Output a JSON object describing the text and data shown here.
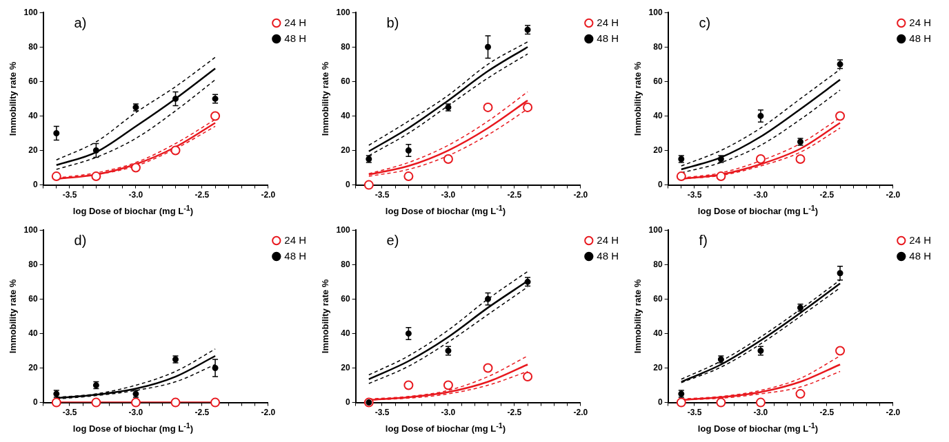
{
  "chart_data": [
    {
      "type": "scatter",
      "annotations": [
        "a)"
      ],
      "xlabel": "log Dose of biochar (mg L$^{-1}$)",
      "ylabel": "Immobility rate %",
      "xlim": [
        -3.7,
        -2.0
      ],
      "xticks": [
        {
          "value": -3.7,
          "label": null
        },
        {
          "value": -3.6,
          "label": null
        },
        {
          "value": -3.5,
          "label": "-3.5"
        },
        {
          "value": -3.4,
          "label": null
        },
        {
          "value": -3.3,
          "label": null
        },
        {
          "value": -3.2,
          "label": null
        },
        {
          "value": -3.1,
          "label": null
        },
        {
          "value": -3.0,
          "label": "-3.0"
        },
        {
          "value": -2.9,
          "label": null
        },
        {
          "value": -2.8,
          "label": null
        },
        {
          "value": -2.7,
          "label": null
        },
        {
          "value": -2.6,
          "label": null
        },
        {
          "value": -2.5,
          "label": "-2.5"
        },
        {
          "value": -2.4,
          "label": null
        },
        {
          "value": -2.3,
          "label": null
        },
        {
          "value": -2.2,
          "label": null
        },
        {
          "value": -2.1,
          "label": null
        },
        {
          "value": -2.0,
          "label": "-2.0"
        }
      ],
      "ylim": [
        0,
        100
      ],
      "yticks": [
        0,
        20,
        40,
        60,
        80,
        100
      ],
      "legend": "top right",
      "series": [
        {
          "name": "24 H",
          "marker": "circle",
          "color": "#e8181e",
          "x": [
            -3.6,
            -3.3,
            -3.0,
            -2.7,
            -2.4
          ],
          "values": [
            5,
            5,
            10,
            20,
            40
          ]
        },
        {
          "name": "48 H",
          "marker": "circle",
          "color": "#000000",
          "x": [
            -3.6,
            -3.3,
            -3.0,
            -2.7,
            -2.4
          ],
          "values": [
            30,
            20,
            45,
            50,
            50
          ],
          "errors": [
            4,
            4,
            2,
            4,
            2.5
          ]
        },
        {
          "type": "line",
          "color": "#e8181e",
          "line_style": "solid",
          "x": [
            -3.6,
            -3.3,
            -3.0,
            -2.7,
            -2.4
          ],
          "values": [
            3.5,
            6,
            12,
            22,
            36
          ]
        },
        {
          "type": "line",
          "color": "#e8181e",
          "line_style": "dashed",
          "x": [
            -3.6,
            -3.3,
            -3.0,
            -2.7,
            -2.4
          ],
          "values": [
            3.5,
            6,
            11,
            21,
            34
          ]
        },
        {
          "type": "line",
          "color": "#e8181e",
          "line_style": "dashed",
          "x": [
            -3.6,
            -3.3,
            -3.0,
            -2.7,
            -2.4
          ],
          "values": [
            4,
            7,
            13,
            24,
            38
          ]
        },
        {
          "type": "line",
          "color": "#000000",
          "line_style": "solid",
          "x": [
            -3.6,
            -3.3,
            -3.0,
            -2.7,
            -2.4
          ],
          "values": [
            11.5,
            19,
            34,
            50,
            67.5
          ]
        },
        {
          "type": "line",
          "color": "#000000",
          "line_style": "dashed",
          "x": [
            -3.6,
            -3.3,
            -3.0,
            -2.7,
            -2.4
          ],
          "values": [
            9,
            16,
            27,
            43,
            61
          ]
        },
        {
          "type": "line",
          "color": "#000000",
          "line_style": "dashed",
          "x": [
            -3.6,
            -3.3,
            -3.0,
            -2.7,
            -2.4
          ],
          "values": [
            14.5,
            25,
            42,
            57,
            74
          ]
        }
      ]
    },
    {
      "type": "scatter",
      "annotations": [
        "b)"
      ],
      "xlabel": "log Dose of biochar (mg L$^{-1}$)",
      "ylabel": "Immobility rate %",
      "xlim": [
        -3.7,
        -2.0
      ],
      "xticks": [
        {
          "value": -3.7,
          "label": null
        },
        {
          "value": -3.6,
          "label": null
        },
        {
          "value": -3.5,
          "label": "-3.5"
        },
        {
          "value": -3.4,
          "label": null
        },
        {
          "value": -3.3,
          "label": null
        },
        {
          "value": -3.2,
          "label": null
        },
        {
          "value": -3.1,
          "label": null
        },
        {
          "value": -3.0,
          "label": "-3.0"
        },
        {
          "value": -2.9,
          "label": null
        },
        {
          "value": -2.8,
          "label": null
        },
        {
          "value": -2.7,
          "label": null
        },
        {
          "value": -2.6,
          "label": null
        },
        {
          "value": -2.5,
          "label": "-2.5"
        },
        {
          "value": -2.4,
          "label": null
        },
        {
          "value": -2.3,
          "label": null
        },
        {
          "value": -2.2,
          "label": null
        },
        {
          "value": -2.1,
          "label": null
        },
        {
          "value": -2.0,
          "label": "-2.0"
        }
      ],
      "ylim": [
        0,
        100
      ],
      "yticks": [
        0,
        20,
        40,
        60,
        80,
        100
      ],
      "legend": "top right",
      "series": [
        {
          "name": "24 H",
          "marker": "circle",
          "color": "#e8181e",
          "x": [
            -3.6,
            -3.3,
            -3.0,
            -2.7,
            -2.4
          ],
          "values": [
            0,
            5,
            15,
            45,
            45
          ]
        },
        {
          "name": "48 H",
          "marker": "circle",
          "color": "#000000",
          "x": [
            -3.6,
            -3.3,
            -3.0,
            -2.7,
            -2.4
          ],
          "values": [
            15,
            20,
            45,
            80,
            90
          ],
          "errors": [
            2,
            3.5,
            2,
            6.5,
            2.5
          ]
        },
        {
          "type": "line",
          "color": "#e8181e",
          "line_style": "solid",
          "x": [
            -3.6,
            -3.3,
            -3.0,
            -2.7,
            -2.4
          ],
          "values": [
            6,
            11,
            20,
            33,
            49
          ]
        },
        {
          "type": "line",
          "color": "#e8181e",
          "line_style": "dashed",
          "x": [
            -3.6,
            -3.3,
            -3.0,
            -2.7,
            -2.4
          ],
          "values": [
            5,
            9,
            17,
            29,
            44
          ]
        },
        {
          "type": "line",
          "color": "#e8181e",
          "line_style": "dashed",
          "x": [
            -3.6,
            -3.3,
            -3.0,
            -2.7,
            -2.4
          ],
          "values": [
            6.5,
            13,
            23,
            37,
            54
          ]
        },
        {
          "type": "line",
          "color": "#000000",
          "line_style": "solid",
          "x": [
            -3.6,
            -3.3,
            -3.0,
            -2.7,
            -2.4
          ],
          "values": [
            19.5,
            33,
            49,
            66,
            80
          ]
        },
        {
          "type": "line",
          "color": "#000000",
          "line_style": "dashed",
          "x": [
            -3.6,
            -3.3,
            -3.0,
            -2.7,
            -2.4
          ],
          "values": [
            17,
            30,
            46,
            62,
            76
          ]
        },
        {
          "type": "line",
          "color": "#000000",
          "line_style": "dashed",
          "x": [
            -3.6,
            -3.3,
            -3.0,
            -2.7,
            -2.4
          ],
          "values": [
            23,
            37,
            52,
            70,
            83
          ]
        }
      ]
    },
    {
      "type": "scatter",
      "annotations": [
        "c)"
      ],
      "xlabel": "log Dose of biochar (mg L$^{-1}$)",
      "ylabel": "Immobility rate %",
      "xlim": [
        -3.7,
        -2.0
      ],
      "xticks": [
        {
          "value": -3.7,
          "label": null
        },
        {
          "value": -3.6,
          "label": null
        },
        {
          "value": -3.5,
          "label": "-3.5"
        },
        {
          "value": -3.4,
          "label": null
        },
        {
          "value": -3.3,
          "label": null
        },
        {
          "value": -3.2,
          "label": null
        },
        {
          "value": -3.1,
          "label": null
        },
        {
          "value": -3.0,
          "label": "-3.0"
        },
        {
          "value": -2.9,
          "label": null
        },
        {
          "value": -2.8,
          "label": null
        },
        {
          "value": -2.7,
          "label": null
        },
        {
          "value": -2.6,
          "label": null
        },
        {
          "value": -2.5,
          "label": "-2.5"
        },
        {
          "value": -2.4,
          "label": null
        },
        {
          "value": -2.3,
          "label": null
        },
        {
          "value": -2.2,
          "label": null
        },
        {
          "value": -2.1,
          "label": null
        },
        {
          "value": -2.0,
          "label": "-2.0"
        }
      ],
      "ylim": [
        0,
        100
      ],
      "yticks": [
        0,
        20,
        40,
        60,
        80,
        100
      ],
      "legend": "top right",
      "series": [
        {
          "name": "24 H",
          "marker": "circle",
          "color": "#e8181e",
          "x": [
            -3.6,
            -3.3,
            -3.0,
            -2.7,
            -2.4
          ],
          "values": [
            5,
            5,
            15,
            15,
            40
          ]
        },
        {
          "name": "48 H",
          "marker": "circle",
          "color": "#000000",
          "x": [
            -3.6,
            -3.3,
            -3.0,
            -2.7,
            -2.4
          ],
          "values": [
            15,
            15,
            40,
            25,
            70
          ],
          "errors": [
            2,
            2,
            3.5,
            2,
            2.5
          ]
        },
        {
          "type": "line",
          "color": "#e8181e",
          "line_style": "solid",
          "x": [
            -3.6,
            -3.3,
            -3.0,
            -2.7,
            -2.4
          ],
          "values": [
            3.5,
            6,
            12,
            21,
            36
          ]
        },
        {
          "type": "line",
          "color": "#e8181e",
          "line_style": "dashed",
          "x": [
            -3.6,
            -3.3,
            -3.0,
            -2.7,
            -2.4
          ],
          "values": [
            3.5,
            5.5,
            11,
            19,
            33
          ]
        },
        {
          "type": "line",
          "color": "#e8181e",
          "line_style": "dashed",
          "x": [
            -3.6,
            -3.3,
            -3.0,
            -2.7,
            -2.4
          ],
          "values": [
            4,
            7,
            14,
            24,
            39
          ]
        },
        {
          "type": "line",
          "color": "#000000",
          "line_style": "solid",
          "x": [
            -3.6,
            -3.3,
            -3.0,
            -2.7,
            -2.4
          ],
          "values": [
            9,
            16,
            28,
            44,
            61
          ]
        },
        {
          "type": "line",
          "color": "#000000",
          "line_style": "dashed",
          "x": [
            -3.6,
            -3.3,
            -3.0,
            -2.7,
            -2.4
          ],
          "values": [
            7,
            13,
            23,
            38,
            55
          ]
        },
        {
          "type": "line",
          "color": "#000000",
          "line_style": "dashed",
          "x": [
            -3.6,
            -3.3,
            -3.0,
            -2.7,
            -2.4
          ],
          "values": [
            11,
            20,
            33,
            50,
            67
          ]
        }
      ]
    },
    {
      "type": "scatter",
      "annotations": [
        "d)"
      ],
      "xlabel": "log Dose of biochar (mg L$^{-1}$)",
      "ylabel": "Immobility rate %",
      "xlim": [
        -3.7,
        -2.0
      ],
      "xticks": [
        {
          "value": -3.7,
          "label": null
        },
        {
          "value": -3.6,
          "label": null
        },
        {
          "value": -3.5,
          "label": "-3.5"
        },
        {
          "value": -3.4,
          "label": null
        },
        {
          "value": -3.3,
          "label": null
        },
        {
          "value": -3.2,
          "label": null
        },
        {
          "value": -3.1,
          "label": null
        },
        {
          "value": -3.0,
          "label": "-3.0"
        },
        {
          "value": -2.9,
          "label": null
        },
        {
          "value": -2.8,
          "label": null
        },
        {
          "value": -2.7,
          "label": null
        },
        {
          "value": -2.6,
          "label": null
        },
        {
          "value": -2.5,
          "label": "-2.5"
        },
        {
          "value": -2.4,
          "label": null
        },
        {
          "value": -2.3,
          "label": null
        },
        {
          "value": -2.2,
          "label": null
        },
        {
          "value": -2.1,
          "label": null
        },
        {
          "value": -2.0,
          "label": "-2.0"
        }
      ],
      "ylim": [
        0,
        100
      ],
      "yticks": [
        0,
        20,
        40,
        60,
        80,
        100
      ],
      "legend": "top right",
      "series": [
        {
          "name": "24 H",
          "marker": "circle",
          "color": "#e8181e",
          "x": [
            -3.6,
            -3.3,
            -3.0,
            -2.7,
            -2.4
          ],
          "values": [
            0,
            0,
            0,
            0,
            0
          ]
        },
        {
          "name": "48 H",
          "marker": "circle",
          "color": "#000000",
          "x": [
            -3.6,
            -3.3,
            -3.0,
            -2.7,
            -2.4
          ],
          "values": [
            5,
            10,
            5,
            25,
            20
          ],
          "errors": [
            2,
            2,
            2,
            2,
            5
          ]
        },
        {
          "type": "line",
          "color": "#e8181e",
          "line_style": "solid",
          "x": [
            -3.6,
            -3.3,
            -3.0,
            -2.7,
            -2.4
          ],
          "values": [
            0,
            0,
            0,
            0,
            0
          ]
        },
        {
          "type": "line",
          "color": "#000000",
          "line_style": "solid",
          "x": [
            -3.6,
            -3.3,
            -3.0,
            -2.7,
            -2.4
          ],
          "values": [
            2.5,
            4.5,
            8,
            15,
            27
          ]
        },
        {
          "type": "line",
          "color": "#000000",
          "line_style": "dashed",
          "x": [
            -3.6,
            -3.3,
            -3.0,
            -2.7,
            -2.4
          ],
          "values": [
            2,
            4,
            7,
            12,
            22
          ]
        },
        {
          "type": "line",
          "color": "#000000",
          "line_style": "dashed",
          "x": [
            -3.6,
            -3.3,
            -3.0,
            -2.7,
            -2.4
          ],
          "values": [
            3,
            5,
            10,
            18,
            31
          ]
        }
      ]
    },
    {
      "type": "scatter",
      "annotations": [
        "e)"
      ],
      "xlabel": "log Dose of biochar (mg L$^{-1}$)",
      "ylabel": "Immobility rate %",
      "xlim": [
        -3.7,
        -2.0
      ],
      "xticks": [
        {
          "value": -3.7,
          "label": null
        },
        {
          "value": -3.6,
          "label": null
        },
        {
          "value": -3.5,
          "label": "-3.5"
        },
        {
          "value": -3.4,
          "label": null
        },
        {
          "value": -3.3,
          "label": null
        },
        {
          "value": -3.2,
          "label": null
        },
        {
          "value": -3.1,
          "label": null
        },
        {
          "value": -3.0,
          "label": "-3.0"
        },
        {
          "value": -2.9,
          "label": null
        },
        {
          "value": -2.8,
          "label": null
        },
        {
          "value": -2.7,
          "label": null
        },
        {
          "value": -2.6,
          "label": null
        },
        {
          "value": -2.5,
          "label": "-2.5"
        },
        {
          "value": -2.4,
          "label": null
        },
        {
          "value": -2.3,
          "label": null
        },
        {
          "value": -2.2,
          "label": null
        },
        {
          "value": -2.1,
          "label": null
        },
        {
          "value": -2.0,
          "label": "-2.0"
        }
      ],
      "ylim": [
        0,
        100
      ],
      "yticks": [
        0,
        20,
        40,
        60,
        80,
        100
      ],
      "legend": "top right",
      "series": [
        {
          "name": "24 H",
          "marker": "circle",
          "color": "#e8181e",
          "x": [
            -3.6,
            -3.3,
            -3.0,
            -2.7,
            -2.4
          ],
          "values": [
            0,
            10,
            10,
            20,
            15
          ]
        },
        {
          "name": "48 H",
          "marker": "circle",
          "color": "#000000",
          "x": [
            -3.6,
            -3.3,
            -3.0,
            -2.7,
            -2.4
          ],
          "values": [
            0,
            40,
            30,
            60,
            70
          ],
          "errors": [
            null,
            3.5,
            2.5,
            3.5,
            2.5
          ]
        },
        {
          "type": "line",
          "color": "#e8181e",
          "line_style": "solid",
          "x": [
            -3.6,
            -3.3,
            -3.0,
            -2.7,
            -2.4
          ],
          "values": [
            1.5,
            3,
            6,
            12,
            22
          ]
        },
        {
          "type": "line",
          "color": "#e8181e",
          "line_style": "dashed",
          "x": [
            -3.6,
            -3.3,
            -3.0,
            -2.7,
            -2.4
          ],
          "values": [
            1.5,
            2.5,
            5,
            10,
            18
          ]
        },
        {
          "type": "line",
          "color": "#e8181e",
          "line_style": "dashed",
          "x": [
            -3.6,
            -3.3,
            -3.0,
            -2.7,
            -2.4
          ],
          "values": [
            2,
            3.5,
            7,
            15,
            27
          ]
        },
        {
          "type": "line",
          "color": "#000000",
          "line_style": "solid",
          "x": [
            -3.6,
            -3.3,
            -3.0,
            -2.7,
            -2.4
          ],
          "values": [
            13.5,
            24,
            38,
            55,
            70.5
          ]
        },
        {
          "type": "line",
          "color": "#000000",
          "line_style": "dashed",
          "x": [
            -3.6,
            -3.3,
            -3.0,
            -2.7,
            -2.4
          ],
          "values": [
            11,
            21,
            35,
            51,
            67
          ]
        },
        {
          "type": "line",
          "color": "#000000",
          "line_style": "dashed",
          "x": [
            -3.6,
            -3.3,
            -3.0,
            -2.7,
            -2.4
          ],
          "values": [
            16,
            27,
            42,
            60,
            76
          ]
        }
      ]
    },
    {
      "type": "scatter",
      "annotations": [
        "f)"
      ],
      "xlabel": "log Dose of biochar (mg L$^{-1}$)",
      "ylabel": "Immobility rate %",
      "xlim": [
        -3.7,
        -2.0
      ],
      "xticks": [
        {
          "value": -3.7,
          "label": null
        },
        {
          "value": -3.6,
          "label": null
        },
        {
          "value": -3.5,
          "label": "-3.5"
        },
        {
          "value": -3.4,
          "label": null
        },
        {
          "value": -3.3,
          "label": null
        },
        {
          "value": -3.2,
          "label": null
        },
        {
          "value": -3.1,
          "label": null
        },
        {
          "value": -3.0,
          "label": "-3.0"
        },
        {
          "value": -2.9,
          "label": null
        },
        {
          "value": -2.8,
          "label": null
        },
        {
          "value": -2.7,
          "label": null
        },
        {
          "value": -2.6,
          "label": null
        },
        {
          "value": -2.5,
          "label": "-2.5"
        },
        {
          "value": -2.4,
          "label": null
        },
        {
          "value": -2.3,
          "label": null
        },
        {
          "value": -2.2,
          "label": null
        },
        {
          "value": -2.1,
          "label": null
        },
        {
          "value": -2.0,
          "label": "-2.0"
        }
      ],
      "ylim": [
        0,
        100
      ],
      "yticks": [
        0,
        20,
        40,
        60,
        80,
        100
      ],
      "legend": "top right",
      "series": [
        {
          "name": "24 H",
          "marker": "circle",
          "color": "#e8181e",
          "x": [
            -3.6,
            -3.3,
            -3.0,
            -2.7,
            -2.4
          ],
          "values": [
            0,
            0,
            0,
            5,
            30
          ]
        },
        {
          "name": "48 H",
          "marker": "circle",
          "color": "#000000",
          "x": [
            -3.6,
            -3.3,
            -3.0,
            -2.7,
            -2.4
          ],
          "values": [
            5,
            25,
            30,
            55,
            75
          ],
          "errors": [
            2,
            2,
            2.5,
            2,
            4
          ]
        },
        {
          "type": "line",
          "color": "#e8181e",
          "line_style": "solid",
          "x": [
            -3.6,
            -3.3,
            -3.0,
            -2.7,
            -2.4
          ],
          "values": [
            1.5,
            3,
            6,
            12,
            22
          ]
        },
        {
          "type": "line",
          "color": "#e8181e",
          "line_style": "dashed",
          "x": [
            -3.6,
            -3.3,
            -3.0,
            -2.7,
            -2.4
          ],
          "values": [
            1.5,
            2.5,
            5,
            9,
            18
          ]
        },
        {
          "type": "line",
          "color": "#e8181e",
          "line_style": "dashed",
          "x": [
            -3.6,
            -3.3,
            -3.0,
            -2.7,
            -2.4
          ],
          "values": [
            2,
            3.5,
            7,
            14,
            27
          ]
        },
        {
          "type": "line",
          "color": "#000000",
          "line_style": "solid",
          "x": [
            -3.6,
            -3.3,
            -3.0,
            -2.7,
            -2.4
          ],
          "values": [
            12,
            22,
            36,
            52,
            69
          ]
        },
        {
          "type": "line",
          "color": "#000000",
          "line_style": "dashed",
          "x": [
            -3.6,
            -3.3,
            -3.0,
            -2.7,
            -2.4
          ],
          "values": [
            11.5,
            20.5,
            34,
            50,
            66.5
          ]
        },
        {
          "type": "line",
          "color": "#000000",
          "line_style": "dashed",
          "x": [
            -3.6,
            -3.3,
            -3.0,
            -2.7,
            -2.4
          ],
          "values": [
            13.5,
            24,
            38,
            54,
            71
          ]
        }
      ]
    }
  ]
}
